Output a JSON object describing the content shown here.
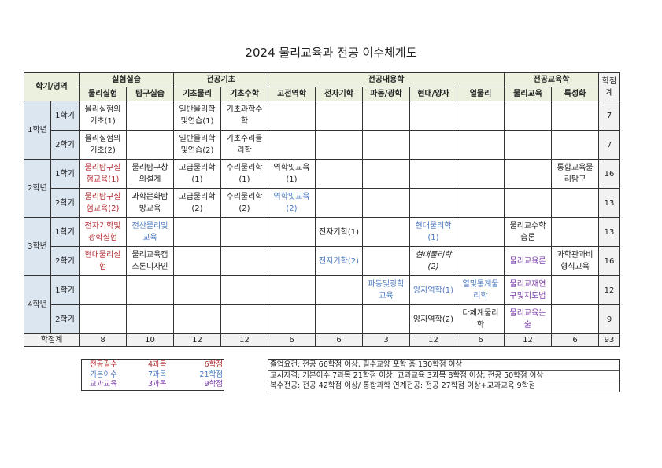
{
  "title": "2024 물리교육과 전공 이수체계도",
  "header": {
    "corner": "학기/영역",
    "groups": [
      {
        "label": "실험실습",
        "span": 2
      },
      {
        "label": "전공기초",
        "span": 2
      },
      {
        "label": "전공내용학",
        "span": 5
      },
      {
        "label": "전공교육학",
        "span": 2
      }
    ],
    "credit": "학점계",
    "columns": [
      "물리실험",
      "탐구실습",
      "기초물리",
      "기초수학",
      "고전역학",
      "전자기학",
      "파동/광학",
      "현대/양자",
      "열물리",
      "물리교육",
      "특성화"
    ]
  },
  "colors": {
    "red": "#b22a30",
    "blue": "#4a78c0",
    "purple": "#7a3aa8"
  },
  "rows": [
    {
      "year": "1학년",
      "term": "1학기",
      "credit": "7",
      "cells": [
        {
          "t": "물리실험의 기초(1)"
        },
        {
          "t": ""
        },
        {
          "t": "일반물리학 및연습(1)"
        },
        {
          "t": "기초과학수 학"
        },
        {
          "t": ""
        },
        {
          "t": ""
        },
        {
          "t": ""
        },
        {
          "t": ""
        },
        {
          "t": ""
        },
        {
          "t": ""
        },
        {
          "t": ""
        }
      ]
    },
    {
      "year": "",
      "term": "2학기",
      "credit": "7",
      "cells": [
        {
          "t": "물리실험의 기초(2)"
        },
        {
          "t": ""
        },
        {
          "t": "일반물리학 및연습(2)"
        },
        {
          "t": "기초수리물 리학"
        },
        {
          "t": ""
        },
        {
          "t": ""
        },
        {
          "t": ""
        },
        {
          "t": ""
        },
        {
          "t": ""
        },
        {
          "t": ""
        },
        {
          "t": ""
        }
      ]
    },
    {
      "year": "2학년",
      "term": "1학기",
      "credit": "16",
      "cells": [
        {
          "t": "물리탐구실 험교육(1)",
          "c": "red"
        },
        {
          "t": "물리탐구창 의설계"
        },
        {
          "t": "고급물리학 (1)"
        },
        {
          "t": "수리물리학 (1)"
        },
        {
          "t": "역학및교육 (1)"
        },
        {
          "t": ""
        },
        {
          "t": ""
        },
        {
          "t": ""
        },
        {
          "t": ""
        },
        {
          "t": ""
        },
        {
          "t": "통합교육물 리탐구"
        }
      ]
    },
    {
      "year": "",
      "term": "2학기",
      "credit": "13",
      "cells": [
        {
          "t": "물리탐구실 험교육(2)",
          "c": "red"
        },
        {
          "t": "과학문화탐 방교육"
        },
        {
          "t": "고급물리학 (2)"
        },
        {
          "t": "수리물리학 (2)"
        },
        {
          "t": "역학및교육 (2)",
          "c": "blue"
        },
        {
          "t": ""
        },
        {
          "t": ""
        },
        {
          "t": ""
        },
        {
          "t": ""
        },
        {
          "t": ""
        },
        {
          "t": ""
        }
      ]
    },
    {
      "year": "3학년",
      "term": "1학기",
      "credit": "13",
      "cells": [
        {
          "t": "전자기학및 광학실험",
          "c": "red"
        },
        {
          "t": "전산물리및 교육",
          "c": "blue"
        },
        {
          "t": ""
        },
        {
          "t": ""
        },
        {
          "t": ""
        },
        {
          "t": "전자기학(1)"
        },
        {
          "t": ""
        },
        {
          "t": "현대물리학 (1)",
          "c": "blue"
        },
        {
          "t": ""
        },
        {
          "t": "물리교수학 습론"
        },
        {
          "t": ""
        }
      ]
    },
    {
      "year": "",
      "term": "2학기",
      "credit": "16",
      "cells": [
        {
          "t": "현대물리실 험",
          "c": "red"
        },
        {
          "t": "물리교육캡 스톤디자인"
        },
        {
          "t": ""
        },
        {
          "t": ""
        },
        {
          "t": ""
        },
        {
          "t": "전자기학(2)",
          "c": "blue"
        },
        {
          "t": ""
        },
        {
          "t": "현대물리학 (2)",
          "c": "it"
        },
        {
          "t": ""
        },
        {
          "t": "물리교육론",
          "c": "purple"
        },
        {
          "t": "과학관과비 형식교육"
        }
      ]
    },
    {
      "year": "4학년",
      "term": "1학기",
      "credit": "12",
      "cells": [
        {
          "t": ""
        },
        {
          "t": ""
        },
        {
          "t": ""
        },
        {
          "t": ""
        },
        {
          "t": ""
        },
        {
          "t": ""
        },
        {
          "t": "파동및광학 교육",
          "c": "blue"
        },
        {
          "t": "양자역학(1)",
          "c": "blue"
        },
        {
          "t": "열및통계물 리학",
          "c": "blue"
        },
        {
          "t": "물리교재연 구및지도법",
          "c": "purple"
        },
        {
          "t": ""
        }
      ]
    },
    {
      "year": "",
      "term": "2학기",
      "credit": "9",
      "cells": [
        {
          "t": ""
        },
        {
          "t": ""
        },
        {
          "t": ""
        },
        {
          "t": ""
        },
        {
          "t": ""
        },
        {
          "t": ""
        },
        {
          "t": ""
        },
        {
          "t": "양자역학(2)"
        },
        {
          "t": "다체계물리 학"
        },
        {
          "t": "물리교육논 술",
          "c": "purple"
        },
        {
          "t": ""
        }
      ]
    }
  ],
  "totals": {
    "label": "학점계",
    "values": [
      "8",
      "10",
      "12",
      "12",
      "6",
      "6",
      "3",
      "12",
      "6",
      "12",
      "6"
    ],
    "sum": "93"
  },
  "legend": [
    {
      "type": "전공필수",
      "courses": "4과목",
      "credits": "6학점",
      "c": "red"
    },
    {
      "type": "기본이수",
      "courses": "7과목",
      "credits": "21학점",
      "c": "blue"
    },
    {
      "type": "교과교육",
      "courses": "3과목",
      "credits": "9학점",
      "c": "purple"
    }
  ],
  "notes": [
    "졸업요건: 전공 66학점 이상, 필수교양 포함 총 130학점 이상",
    "교사자격: 기본이수 7과목 21학점 이상, 교과교육 3과목 8학점 이상; 전공 50학점 이상",
    "복수전공: 전공 42학점 이상/ 통합과학 연계전공: 전공 27학점 이상+교과교육 9학점"
  ]
}
